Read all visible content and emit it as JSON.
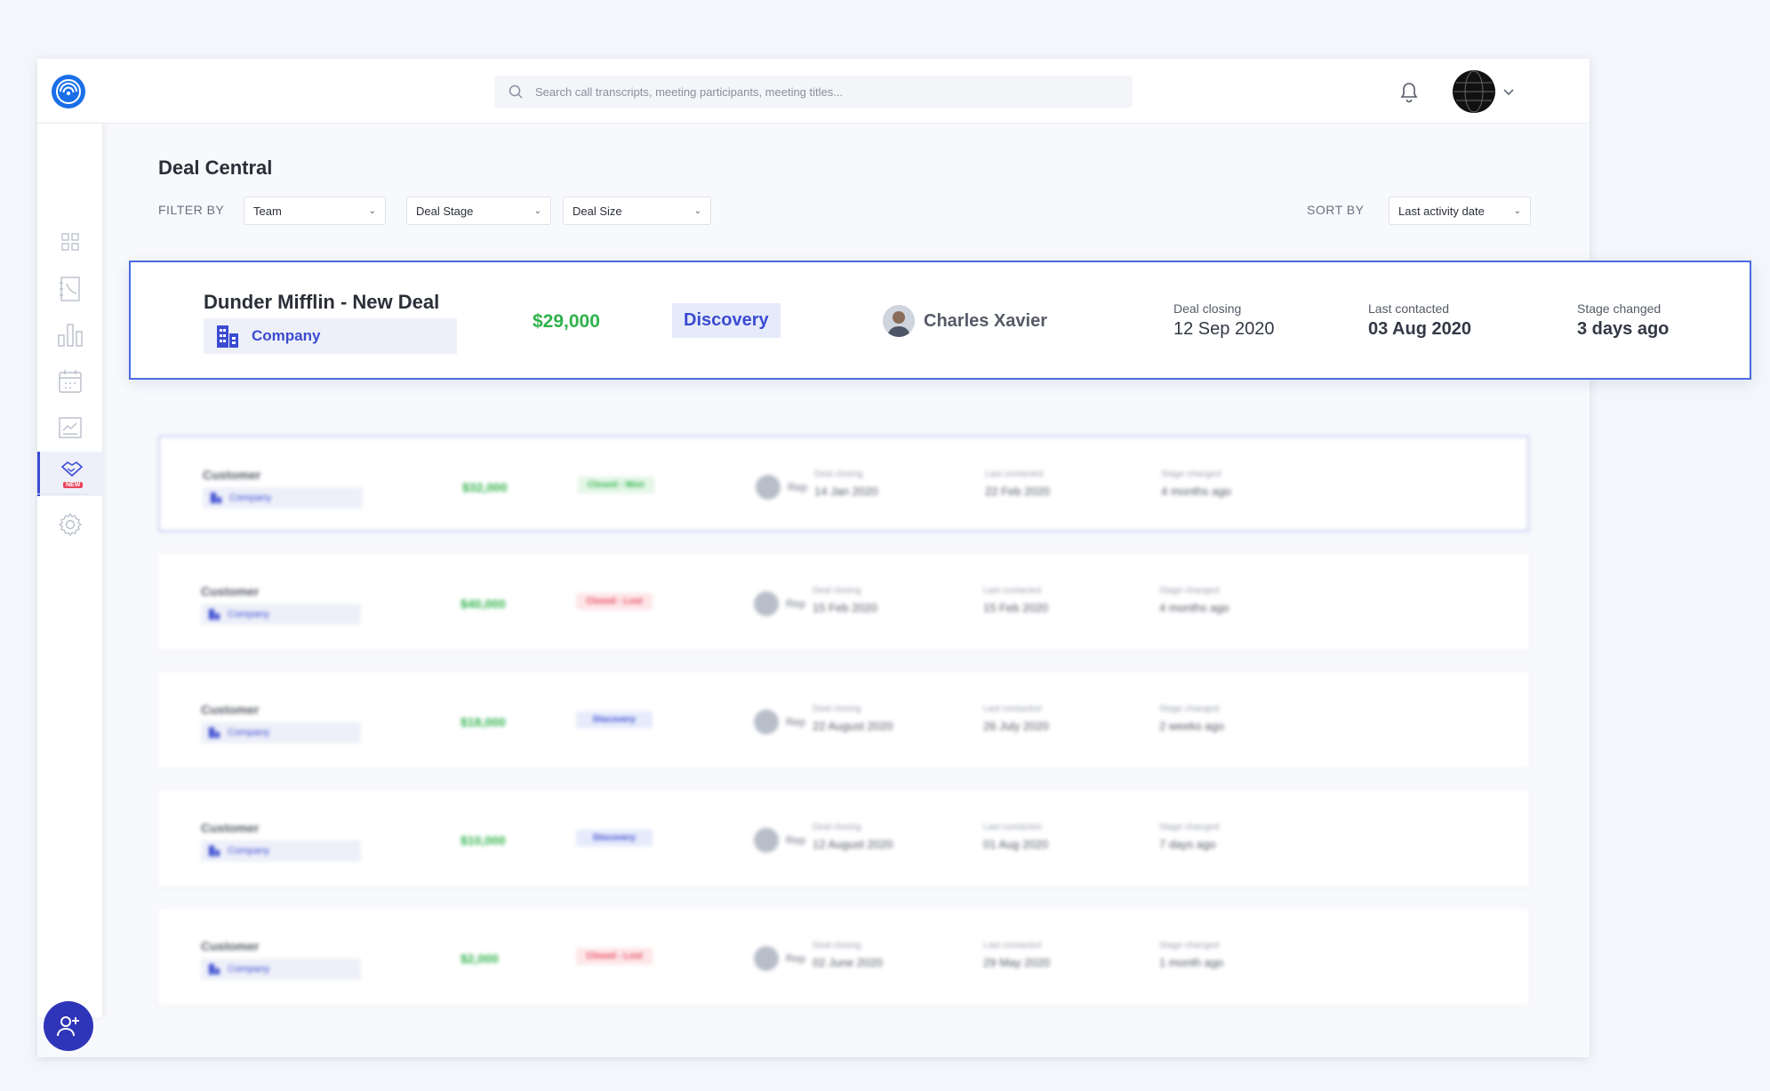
{
  "search": {
    "placeholder": "Search call transcripts, meeting participants, meeting titles..."
  },
  "page": {
    "title": "Deal Central"
  },
  "filters": {
    "label": "FILTER BY",
    "team": "Team",
    "deal_stage": "Deal Stage",
    "deal_size": "Deal Size",
    "sort_label": "SORT  BY",
    "sort_value": "Last activity date"
  },
  "sidebar": {
    "items": [
      "dashboard-icon",
      "contacts-icon",
      "analytics-icon",
      "calendar-icon",
      "reports-icon",
      "deals-icon",
      "settings-icon"
    ],
    "new_badge": "NEW"
  },
  "colors": {
    "accent": "#3a4bd1",
    "green": "#2fb24b",
    "red": "#e8455b",
    "brand": "#1a6fe8"
  },
  "highlight": {
    "deal_name": "Dunder Mifflin - New Deal",
    "company": "Company",
    "amount": "$29,000",
    "stage": "Discovery",
    "rep": "Charles Xavier",
    "closing_label": "Deal  closing",
    "closing_value": "12 Sep 2020",
    "contacted_label": "Last contacted",
    "contacted_value": "03 Aug 2020",
    "stage_label": "Stage changed",
    "stage_value": "3 days ago"
  },
  "deals": [
    {
      "customer": "Customer",
      "company": "Company",
      "amount": "$32,000",
      "stage": "Closed - Won",
      "stage_type": "won",
      "rep": "Rep",
      "closing_label": "Deal  closing",
      "closing": "14 Jan 2020",
      "contacted_label": "Last contacted",
      "contacted": "22 Feb 2020",
      "changed_label": "Stage changed",
      "changed": "4 months ago"
    },
    {
      "customer": "Customer",
      "company": "Company",
      "amount": "$40,000",
      "stage": "Closed - Lost",
      "stage_type": "lost",
      "rep": "Rep",
      "closing_label": "Deal  closing",
      "closing": "15 Feb 2020",
      "contacted_label": "Last contacted",
      "contacted": "15 Feb 2020",
      "changed_label": "Stage changed",
      "changed": "4 months ago"
    },
    {
      "customer": "Customer",
      "company": "Company",
      "amount": "$18,000",
      "stage": "Discovery",
      "stage_type": "disc",
      "rep": "Rep",
      "closing_label": "Deal  closing",
      "closing": "22 August 2020",
      "contacted_label": "Last contacted",
      "contacted": "26 July 2020",
      "changed_label": "Stage changed",
      "changed": "2 weeks ago"
    },
    {
      "customer": "Customer",
      "company": "Company",
      "amount": "$10,000",
      "stage": "Discovery",
      "stage_type": "disc",
      "rep": "Rep",
      "closing_label": "Deal  closing",
      "closing": "12 August 2020",
      "contacted_label": "Last contacted",
      "contacted": "01 Aug 2020",
      "changed_label": "Stage changed",
      "changed": "7 days ago"
    },
    {
      "customer": "Customer",
      "company": "Company",
      "amount": "$2,000",
      "stage": "Closed - Lost",
      "stage_type": "lost",
      "rep": "Rep",
      "closing_label": "Deal  closing",
      "closing": "02 June 2020",
      "contacted_label": "Last contacted",
      "contacted": "29 May 2020",
      "changed_label": "Stage changed",
      "changed": "1 month ago"
    }
  ]
}
